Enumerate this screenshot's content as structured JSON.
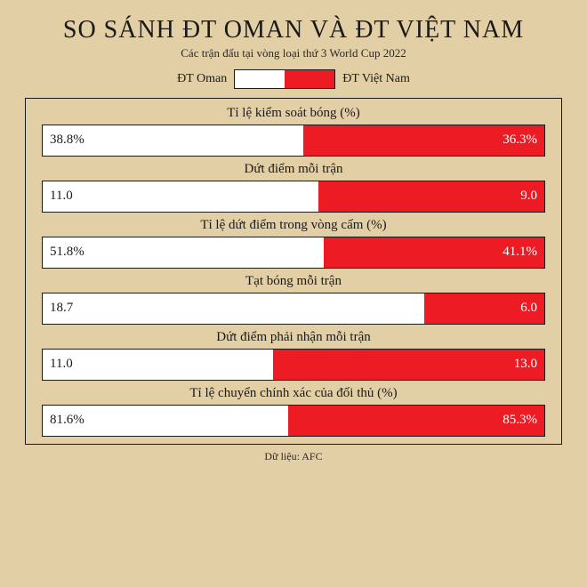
{
  "title": "SO SÁNH ĐT OMAN VÀ ĐT VIỆT NAM",
  "subtitle": "Các trận đấu tại vòng loại thứ 3 World Cup 2022",
  "legend": {
    "left_label": "ĐT Oman",
    "right_label": "ĐT Việt Nam",
    "left_color": "#ffffff",
    "right_color": "#ed1b24"
  },
  "chart": {
    "background": "#e3cfa5",
    "border_color": "#1a1a1a",
    "left_bar_color": "#ffffff",
    "right_bar_color": "#ed1b24",
    "left_text_color": "#1a1a1a",
    "right_text_color": "#ffffff",
    "title_fontsize": 28,
    "subtitle_fontsize": 13,
    "row_label_fontsize": 15,
    "value_fontsize": 15,
    "rows": [
      {
        "label": "Tỉ lệ kiểm soát bóng (%)",
        "left_value": "38.8%",
        "right_value": "36.3%",
        "left_width_pct": 52
      },
      {
        "label": "Dứt điểm mỗi trận",
        "left_value": "11.0",
        "right_value": "9.0",
        "left_width_pct": 55
      },
      {
        "label": "Tỉ lệ dứt điểm trong vòng cấm (%)",
        "left_value": "51.8%",
        "right_value": "41.1%",
        "left_width_pct": 56
      },
      {
        "label": "Tạt bóng mỗi trận",
        "left_value": "18.7",
        "right_value": "6.0",
        "left_width_pct": 76
      },
      {
        "label": "Dứt điểm phải nhận mỗi trận",
        "left_value": "11.0",
        "right_value": "13.0",
        "left_width_pct": 46
      },
      {
        "label": "Tỉ lệ chuyển chính xác của đối thủ (%)",
        "left_value": "81.6%",
        "right_value": "85.3%",
        "left_width_pct": 49
      }
    ]
  },
  "footer": "Dữ liệu: AFC"
}
